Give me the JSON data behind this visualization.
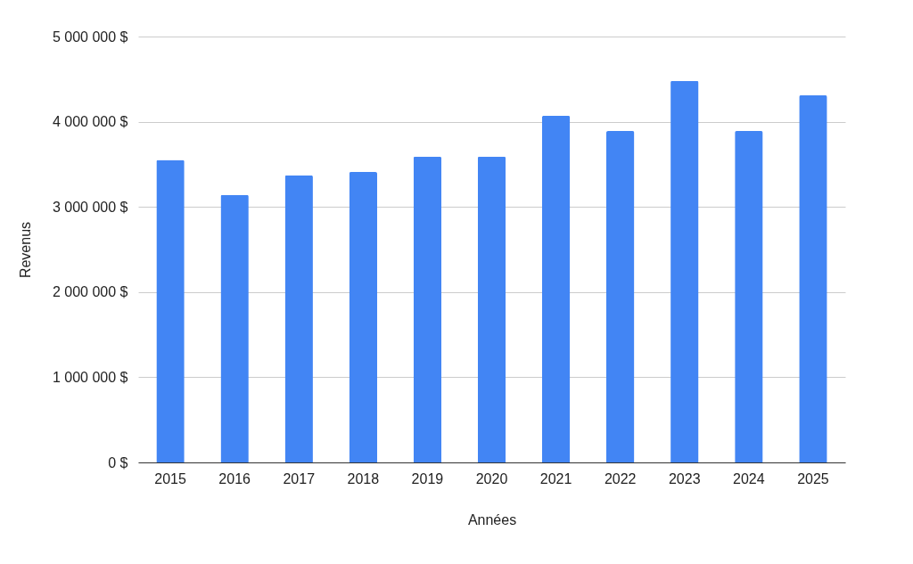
{
  "chart_data": {
    "type": "bar",
    "xlabel": "Années",
    "ylabel": "Revenus",
    "categories": [
      "2015",
      "2016",
      "2017",
      "2018",
      "2019",
      "2020",
      "2021",
      "2022",
      "2023",
      "2024",
      "2025"
    ],
    "values": [
      3550000,
      3140000,
      3370000,
      3410000,
      3590000,
      3590000,
      4070000,
      3890000,
      4480000,
      3890000,
      4310000
    ],
    "color": "#4285f4",
    "ylim": [
      0,
      5000000
    ],
    "yticks": [
      {
        "value": 0,
        "label": "0 $"
      },
      {
        "value": 1000000,
        "label": "1 000 000 $"
      },
      {
        "value": 2000000,
        "label": "2 000 000 $"
      },
      {
        "value": 3000000,
        "label": "3 000 000 $"
      },
      {
        "value": 4000000,
        "label": "4 000 000 $"
      },
      {
        "value": 5000000,
        "label": "5 000 000 $"
      }
    ],
    "grid": "y"
  }
}
